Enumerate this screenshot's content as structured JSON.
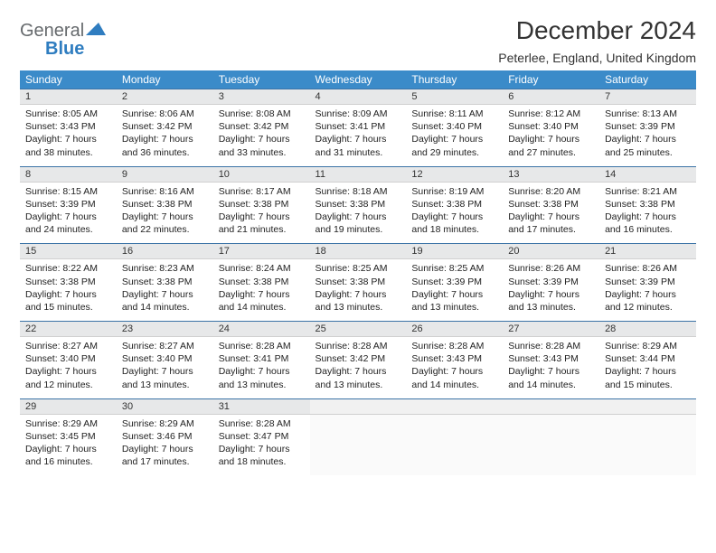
{
  "logo": {
    "general": "General",
    "blue": "Blue"
  },
  "title": "December 2024",
  "location": "Peterlee, England, United Kingdom",
  "colors": {
    "header_bg": "#3b8bc9",
    "header_text": "#ffffff",
    "daynum_bg": "#e7e8e9",
    "rule": "#3b73a6",
    "logo_gray": "#666a6d",
    "logo_blue": "#2f7dc0",
    "page_bg": "#ffffff",
    "text": "#222222"
  },
  "fonts": {
    "title_size": 28,
    "location_size": 14,
    "th_size": 12,
    "cell_size": 10.5
  },
  "weekdays": [
    "Sunday",
    "Monday",
    "Tuesday",
    "Wednesday",
    "Thursday",
    "Friday",
    "Saturday"
  ],
  "weeks": [
    [
      {
        "n": "1",
        "sun": "Sunrise: 8:05 AM",
        "set": "Sunset: 3:43 PM",
        "d1": "Daylight: 7 hours",
        "d2": "and 38 minutes."
      },
      {
        "n": "2",
        "sun": "Sunrise: 8:06 AM",
        "set": "Sunset: 3:42 PM",
        "d1": "Daylight: 7 hours",
        "d2": "and 36 minutes."
      },
      {
        "n": "3",
        "sun": "Sunrise: 8:08 AM",
        "set": "Sunset: 3:42 PM",
        "d1": "Daylight: 7 hours",
        "d2": "and 33 minutes."
      },
      {
        "n": "4",
        "sun": "Sunrise: 8:09 AM",
        "set": "Sunset: 3:41 PM",
        "d1": "Daylight: 7 hours",
        "d2": "and 31 minutes."
      },
      {
        "n": "5",
        "sun": "Sunrise: 8:11 AM",
        "set": "Sunset: 3:40 PM",
        "d1": "Daylight: 7 hours",
        "d2": "and 29 minutes."
      },
      {
        "n": "6",
        "sun": "Sunrise: 8:12 AM",
        "set": "Sunset: 3:40 PM",
        "d1": "Daylight: 7 hours",
        "d2": "and 27 minutes."
      },
      {
        "n": "7",
        "sun": "Sunrise: 8:13 AM",
        "set": "Sunset: 3:39 PM",
        "d1": "Daylight: 7 hours",
        "d2": "and 25 minutes."
      }
    ],
    [
      {
        "n": "8",
        "sun": "Sunrise: 8:15 AM",
        "set": "Sunset: 3:39 PM",
        "d1": "Daylight: 7 hours",
        "d2": "and 24 minutes."
      },
      {
        "n": "9",
        "sun": "Sunrise: 8:16 AM",
        "set": "Sunset: 3:38 PM",
        "d1": "Daylight: 7 hours",
        "d2": "and 22 minutes."
      },
      {
        "n": "10",
        "sun": "Sunrise: 8:17 AM",
        "set": "Sunset: 3:38 PM",
        "d1": "Daylight: 7 hours",
        "d2": "and 21 minutes."
      },
      {
        "n": "11",
        "sun": "Sunrise: 8:18 AM",
        "set": "Sunset: 3:38 PM",
        "d1": "Daylight: 7 hours",
        "d2": "and 19 minutes."
      },
      {
        "n": "12",
        "sun": "Sunrise: 8:19 AM",
        "set": "Sunset: 3:38 PM",
        "d1": "Daylight: 7 hours",
        "d2": "and 18 minutes."
      },
      {
        "n": "13",
        "sun": "Sunrise: 8:20 AM",
        "set": "Sunset: 3:38 PM",
        "d1": "Daylight: 7 hours",
        "d2": "and 17 minutes."
      },
      {
        "n": "14",
        "sun": "Sunrise: 8:21 AM",
        "set": "Sunset: 3:38 PM",
        "d1": "Daylight: 7 hours",
        "d2": "and 16 minutes."
      }
    ],
    [
      {
        "n": "15",
        "sun": "Sunrise: 8:22 AM",
        "set": "Sunset: 3:38 PM",
        "d1": "Daylight: 7 hours",
        "d2": "and 15 minutes."
      },
      {
        "n": "16",
        "sun": "Sunrise: 8:23 AM",
        "set": "Sunset: 3:38 PM",
        "d1": "Daylight: 7 hours",
        "d2": "and 14 minutes."
      },
      {
        "n": "17",
        "sun": "Sunrise: 8:24 AM",
        "set": "Sunset: 3:38 PM",
        "d1": "Daylight: 7 hours",
        "d2": "and 14 minutes."
      },
      {
        "n": "18",
        "sun": "Sunrise: 8:25 AM",
        "set": "Sunset: 3:38 PM",
        "d1": "Daylight: 7 hours",
        "d2": "and 13 minutes."
      },
      {
        "n": "19",
        "sun": "Sunrise: 8:25 AM",
        "set": "Sunset: 3:39 PM",
        "d1": "Daylight: 7 hours",
        "d2": "and 13 minutes."
      },
      {
        "n": "20",
        "sun": "Sunrise: 8:26 AM",
        "set": "Sunset: 3:39 PM",
        "d1": "Daylight: 7 hours",
        "d2": "and 13 minutes."
      },
      {
        "n": "21",
        "sun": "Sunrise: 8:26 AM",
        "set": "Sunset: 3:39 PM",
        "d1": "Daylight: 7 hours",
        "d2": "and 12 minutes."
      }
    ],
    [
      {
        "n": "22",
        "sun": "Sunrise: 8:27 AM",
        "set": "Sunset: 3:40 PM",
        "d1": "Daylight: 7 hours",
        "d2": "and 12 minutes."
      },
      {
        "n": "23",
        "sun": "Sunrise: 8:27 AM",
        "set": "Sunset: 3:40 PM",
        "d1": "Daylight: 7 hours",
        "d2": "and 13 minutes."
      },
      {
        "n": "24",
        "sun": "Sunrise: 8:28 AM",
        "set": "Sunset: 3:41 PM",
        "d1": "Daylight: 7 hours",
        "d2": "and 13 minutes."
      },
      {
        "n": "25",
        "sun": "Sunrise: 8:28 AM",
        "set": "Sunset: 3:42 PM",
        "d1": "Daylight: 7 hours",
        "d2": "and 13 minutes."
      },
      {
        "n": "26",
        "sun": "Sunrise: 8:28 AM",
        "set": "Sunset: 3:43 PM",
        "d1": "Daylight: 7 hours",
        "d2": "and 14 minutes."
      },
      {
        "n": "27",
        "sun": "Sunrise: 8:28 AM",
        "set": "Sunset: 3:43 PM",
        "d1": "Daylight: 7 hours",
        "d2": "and 14 minutes."
      },
      {
        "n": "28",
        "sun": "Sunrise: 8:29 AM",
        "set": "Sunset: 3:44 PM",
        "d1": "Daylight: 7 hours",
        "d2": "and 15 minutes."
      }
    ],
    [
      {
        "n": "29",
        "sun": "Sunrise: 8:29 AM",
        "set": "Sunset: 3:45 PM",
        "d1": "Daylight: 7 hours",
        "d2": "and 16 minutes."
      },
      {
        "n": "30",
        "sun": "Sunrise: 8:29 AM",
        "set": "Sunset: 3:46 PM",
        "d1": "Daylight: 7 hours",
        "d2": "and 17 minutes."
      },
      {
        "n": "31",
        "sun": "Sunrise: 8:28 AM",
        "set": "Sunset: 3:47 PM",
        "d1": "Daylight: 7 hours",
        "d2": "and 18 minutes."
      },
      null,
      null,
      null,
      null
    ]
  ]
}
